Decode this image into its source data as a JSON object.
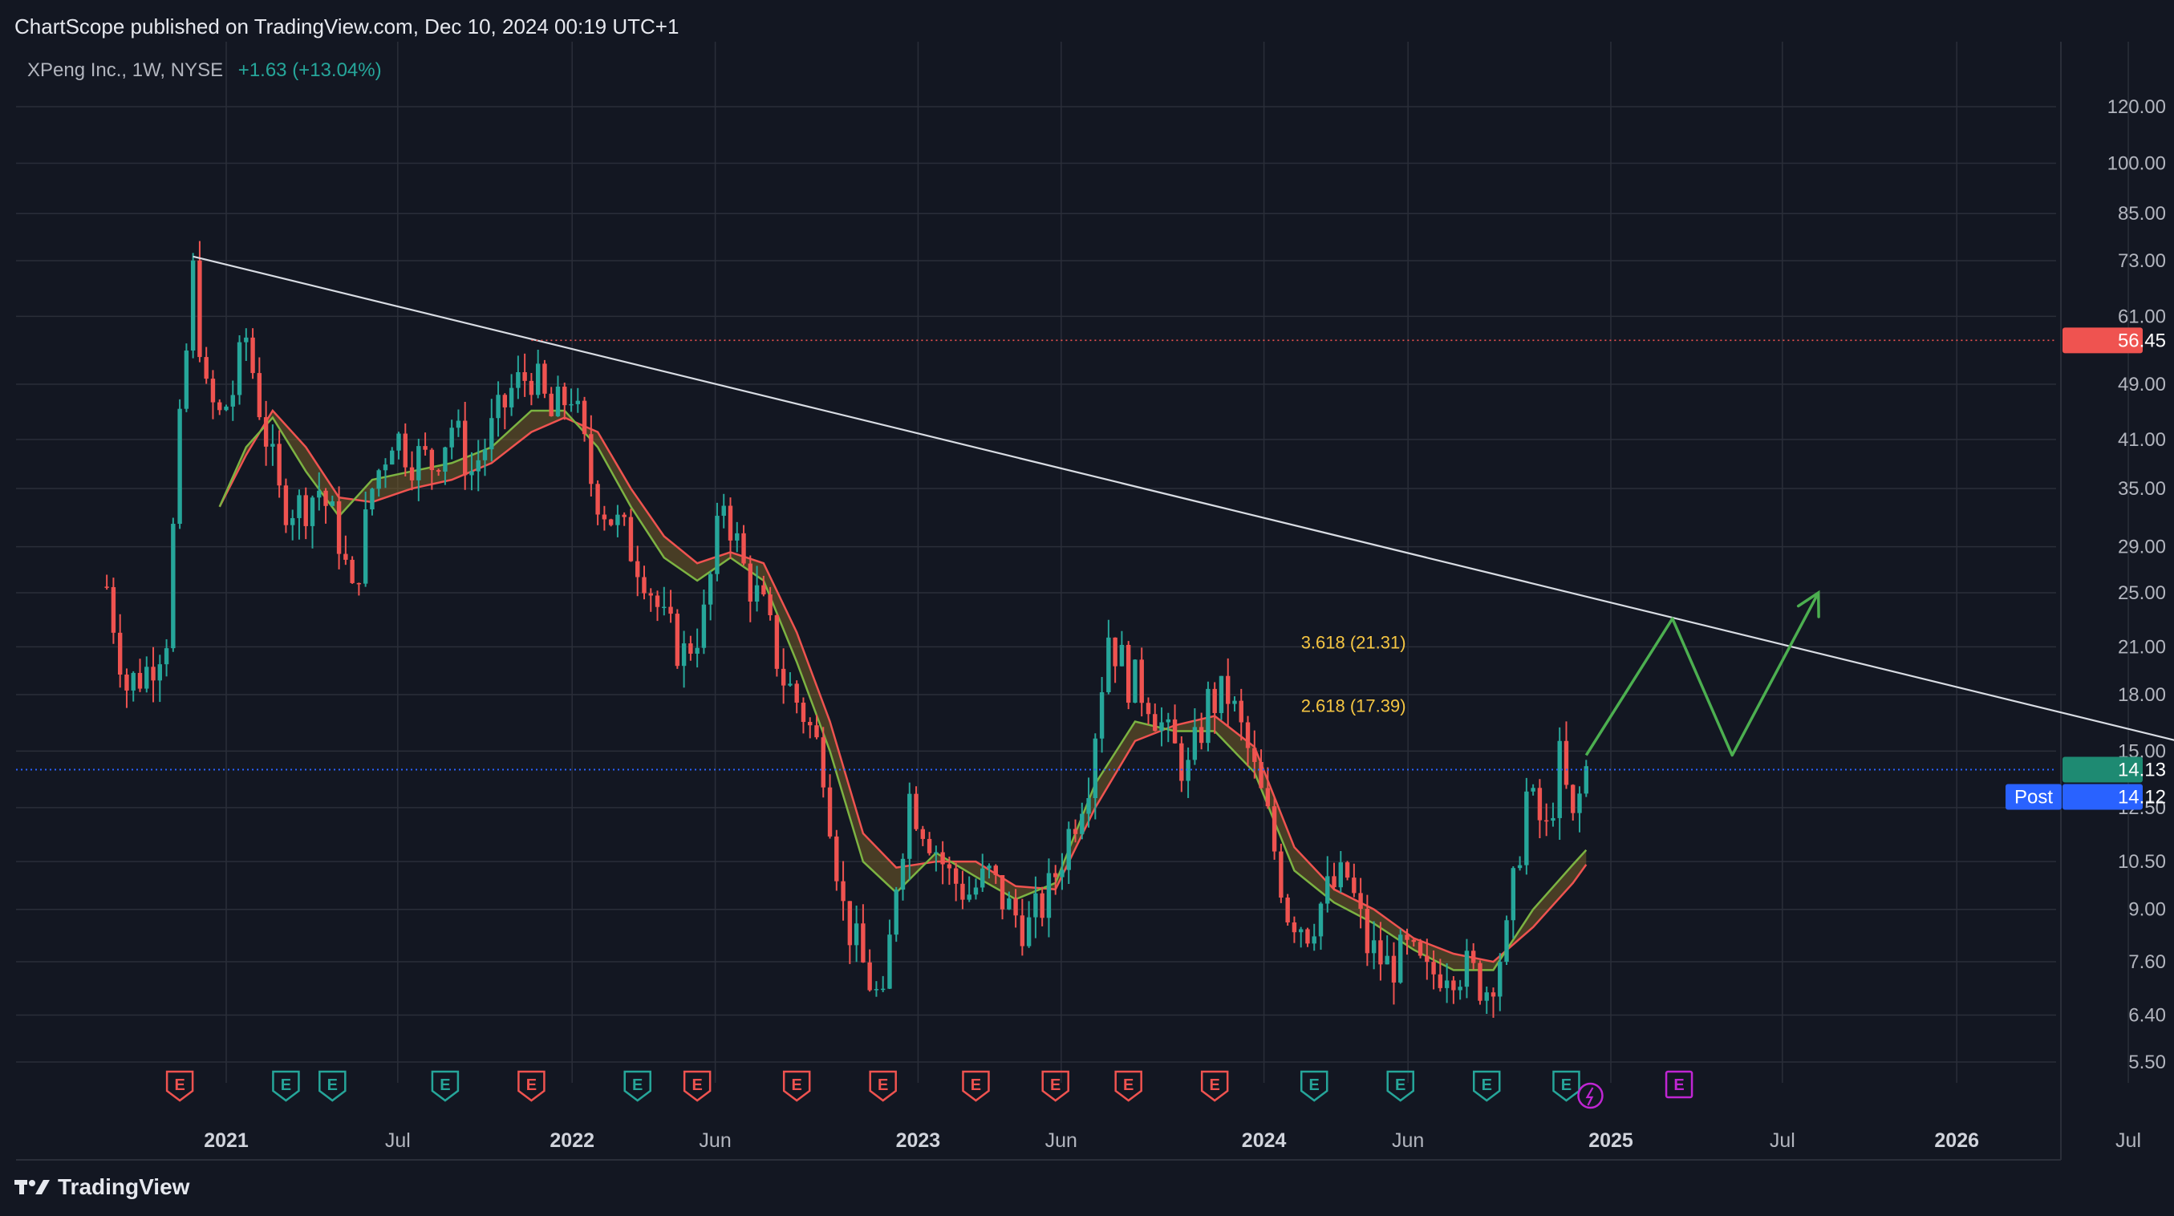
{
  "header": {
    "published": "ChartScope published on TradingView.com, Dec 10, 2024 00:19 UTC+1",
    "symbol": "XPeng Inc., 1W, NYSE",
    "change": "+1.63 (+13.04%)"
  },
  "brand": {
    "name": "TradingView"
  },
  "colors": {
    "background": "#131722",
    "grid": "#2a2e39",
    "up": "#26a69a",
    "down": "#ef5350",
    "trendline": "#d8dce3",
    "projection": "#4caf50",
    "fib_text": "#f5c542",
    "resistance": "#ef5350",
    "price_line": "#2962ff"
  },
  "chart_data": {
    "type": "candlestick",
    "y_scale": "log",
    "ylim": [
      5.0,
      125.0
    ],
    "y_ticks": [
      "120.00",
      "100.00",
      "85.00",
      "73.00",
      "61.00",
      "49.00",
      "41.00",
      "35.00",
      "29.00",
      "25.00",
      "21.00",
      "18.00",
      "15.00",
      "12.50",
      "10.50",
      "9.00",
      "7.60",
      "6.40",
      "5.50"
    ],
    "x_ticks": [
      {
        "label": "2021",
        "date": "2021-01-01",
        "year": true
      },
      {
        "label": "Jul",
        "date": "2021-07-01",
        "year": false
      },
      {
        "label": "2022",
        "date": "2022-01-01",
        "year": true
      },
      {
        "label": "Jun",
        "date": "2022-06-01",
        "year": false
      },
      {
        "label": "2023",
        "date": "2023-01-01",
        "year": true
      },
      {
        "label": "Jun",
        "date": "2023-06-01",
        "year": false
      },
      {
        "label": "2024",
        "date": "2024-01-01",
        "year": true
      },
      {
        "label": "Jun",
        "date": "2024-06-01",
        "year": false
      },
      {
        "label": "2025",
        "date": "2025-01-01",
        "year": true
      },
      {
        "label": "Jul",
        "date": "2025-07-01",
        "year": false
      },
      {
        "label": "2026",
        "date": "2026-01-01",
        "year": true
      },
      {
        "label": "Jul",
        "date": "2026-07-01",
        "year": false
      }
    ],
    "price_path": [
      [
        "2020-08-28",
        25.5
      ],
      [
        "2020-09-18",
        18.5
      ],
      [
        "2020-10-09",
        19.5
      ],
      [
        "2020-10-30",
        22.0
      ],
      [
        "2020-11-13",
        42.0
      ],
      [
        "2020-11-27",
        70.0
      ],
      [
        "2020-12-11",
        47.0
      ],
      [
        "2020-12-25",
        44.0
      ],
      [
        "2021-01-08",
        48.0
      ],
      [
        "2021-01-22",
        57.0
      ],
      [
        "2021-02-05",
        46.0
      ],
      [
        "2021-02-26",
        34.0
      ],
      [
        "2021-03-19",
        33.0
      ],
      [
        "2021-04-09",
        35.0
      ],
      [
        "2021-04-30",
        30.0
      ],
      [
        "2021-05-14",
        24.5
      ],
      [
        "2021-06-04",
        35.0
      ],
      [
        "2021-06-25",
        42.0
      ],
      [
        "2021-07-16",
        39.0
      ],
      [
        "2021-08-06",
        38.0
      ],
      [
        "2021-08-27",
        43.0
      ],
      [
        "2021-09-17",
        37.0
      ],
      [
        "2021-10-08",
        42.0
      ],
      [
        "2021-10-29",
        48.0
      ],
      [
        "2021-11-19",
        51.0
      ],
      [
        "2021-12-10",
        44.0
      ],
      [
        "2021-12-31",
        48.0
      ],
      [
        "2022-01-21",
        36.0
      ],
      [
        "2022-02-04",
        33.0
      ],
      [
        "2022-02-25",
        30.0
      ],
      [
        "2022-03-18",
        27.0
      ],
      [
        "2022-04-08",
        22.5
      ],
      [
        "2022-04-29",
        20.5
      ],
      [
        "2022-05-20",
        23.0
      ],
      [
        "2022-06-10",
        34.0
      ],
      [
        "2022-07-01",
        27.0
      ],
      [
        "2022-07-22",
        23.5
      ],
      [
        "2022-08-12",
        19.0
      ],
      [
        "2022-09-02",
        17.0
      ],
      [
        "2022-09-23",
        14.5
      ],
      [
        "2022-10-14",
        9.0
      ],
      [
        "2022-11-04",
        7.5
      ],
      [
        "2022-11-25",
        6.5
      ],
      [
        "2022-12-09",
        10.0
      ],
      [
        "2022-12-23",
        13.0
      ],
      [
        "2023-01-13",
        11.5
      ],
      [
        "2023-02-03",
        10.0
      ],
      [
        "2023-02-24",
        9.5
      ],
      [
        "2023-03-17",
        10.0
      ],
      [
        "2023-04-07",
        9.0
      ],
      [
        "2023-04-28",
        8.5
      ],
      [
        "2023-05-19",
        9.5
      ],
      [
        "2023-06-09",
        11.5
      ],
      [
        "2023-06-30",
        14.0
      ],
      [
        "2023-07-21",
        22.0
      ],
      [
        "2023-08-11",
        19.0
      ],
      [
        "2023-09-01",
        18.0
      ],
      [
        "2023-09-22",
        15.5
      ],
      [
        "2023-10-13",
        14.0
      ],
      [
        "2023-11-03",
        17.5
      ],
      [
        "2023-11-24",
        18.0
      ],
      [
        "2023-12-15",
        15.0
      ],
      [
        "2024-01-05",
        12.0
      ],
      [
        "2024-01-26",
        9.0
      ],
      [
        "2024-02-16",
        8.5
      ],
      [
        "2024-03-08",
        9.5
      ],
      [
        "2024-03-29",
        10.0
      ],
      [
        "2024-04-19",
        8.0
      ],
      [
        "2024-05-10",
        7.5
      ],
      [
        "2024-05-31",
        7.8
      ],
      [
        "2024-06-21",
        7.2
      ],
      [
        "2024-07-12",
        7.6
      ],
      [
        "2024-08-02",
        7.4
      ],
      [
        "2024-08-23",
        7.0
      ],
      [
        "2024-09-13",
        8.2
      ],
      [
        "2024-10-04",
        13.0
      ],
      [
        "2024-10-25",
        11.5
      ],
      [
        "2024-11-08",
        14.5
      ],
      [
        "2024-11-22",
        11.8
      ],
      [
        "2024-12-06",
        14.13
      ]
    ],
    "ma_fast": [
      [
        "2020-12-25",
        33.0
      ],
      [
        "2021-01-22",
        40.0
      ],
      [
        "2021-02-19",
        44.0
      ],
      [
        "2021-03-26",
        37.0
      ],
      [
        "2021-04-30",
        32.0
      ],
      [
        "2021-06-04",
        36.0
      ],
      [
        "2021-07-16",
        37.0
      ],
      [
        "2021-08-27",
        38.0
      ],
      [
        "2021-10-08",
        40.0
      ],
      [
        "2021-11-19",
        45.0
      ],
      [
        "2021-12-24",
        45.0
      ],
      [
        "2022-01-28",
        40.0
      ],
      [
        "2022-03-04",
        33.0
      ],
      [
        "2022-04-08",
        28.0
      ],
      [
        "2022-05-13",
        26.0
      ],
      [
        "2022-06-17",
        28.0
      ],
      [
        "2022-07-22",
        26.0
      ],
      [
        "2022-08-26",
        20.0
      ],
      [
        "2022-09-30",
        15.0
      ],
      [
        "2022-11-04",
        10.5
      ],
      [
        "2022-12-09",
        9.5
      ],
      [
        "2023-01-20",
        10.8
      ],
      [
        "2023-03-03",
        10.0
      ],
      [
        "2023-04-14",
        9.3
      ],
      [
        "2023-05-26",
        9.8
      ],
      [
        "2023-07-07",
        13.5
      ],
      [
        "2023-08-18",
        16.5
      ],
      [
        "2023-09-29",
        16.0
      ],
      [
        "2023-11-10",
        16.0
      ],
      [
        "2023-12-22",
        14.0
      ],
      [
        "2024-02-02",
        10.2
      ],
      [
        "2024-03-15",
        9.2
      ],
      [
        "2024-04-26",
        8.6
      ],
      [
        "2024-06-07",
        7.9
      ],
      [
        "2024-07-19",
        7.4
      ],
      [
        "2024-08-30",
        7.4
      ],
      [
        "2024-10-11",
        9.0
      ],
      [
        "2024-11-22",
        10.4
      ],
      [
        "2024-12-06",
        10.9
      ]
    ],
    "ma_slow": [
      [
        "2020-12-25",
        33.0
      ],
      [
        "2021-01-22",
        39.0
      ],
      [
        "2021-02-19",
        45.0
      ],
      [
        "2021-03-26",
        40.0
      ],
      [
        "2021-04-30",
        34.0
      ],
      [
        "2021-06-04",
        33.5
      ],
      [
        "2021-07-16",
        35.0
      ],
      [
        "2021-08-27",
        36.0
      ],
      [
        "2021-10-08",
        38.0
      ],
      [
        "2021-11-19",
        42.0
      ],
      [
        "2021-12-24",
        44.0
      ],
      [
        "2022-01-28",
        42.0
      ],
      [
        "2022-03-04",
        35.0
      ],
      [
        "2022-04-08",
        30.0
      ],
      [
        "2022-05-13",
        27.5
      ],
      [
        "2022-06-17",
        28.5
      ],
      [
        "2022-07-22",
        27.5
      ],
      [
        "2022-08-26",
        22.0
      ],
      [
        "2022-09-30",
        16.5
      ],
      [
        "2022-11-04",
        11.5
      ],
      [
        "2022-12-09",
        10.3
      ],
      [
        "2023-01-20",
        10.5
      ],
      [
        "2023-03-03",
        10.5
      ],
      [
        "2023-04-14",
        9.7
      ],
      [
        "2023-05-26",
        9.6
      ],
      [
        "2023-07-07",
        12.5
      ],
      [
        "2023-08-18",
        15.5
      ],
      [
        "2023-09-29",
        16.3
      ],
      [
        "2023-11-10",
        16.8
      ],
      [
        "2023-12-22",
        15.2
      ],
      [
        "2024-02-02",
        11.0
      ],
      [
        "2024-03-15",
        9.6
      ],
      [
        "2024-04-26",
        9.0
      ],
      [
        "2024-06-07",
        8.2
      ],
      [
        "2024-07-19",
        7.8
      ],
      [
        "2024-08-30",
        7.6
      ],
      [
        "2024-10-11",
        8.5
      ],
      [
        "2024-11-22",
        9.8
      ],
      [
        "2024-12-06",
        10.4
      ]
    ],
    "trendline": {
      "start": [
        "2020-11-27",
        74.0
      ],
      "end": [
        "2026-10-23",
        14.8
      ]
    },
    "resistance": {
      "price": 56.45,
      "label": "56.45",
      "start": "2021-11-19"
    },
    "last_price": {
      "price": 14.13,
      "label": "14.13"
    },
    "post_price": {
      "price": 14.12,
      "label": "14.12",
      "tag": "Post"
    },
    "fib_levels": [
      {
        "label": "3.618 (21.31)",
        "price": 21.31,
        "date": "2024-02-09"
      },
      {
        "label": "2.618 (17.39)",
        "price": 17.39,
        "date": "2024-02-09"
      }
    ],
    "projection": [
      [
        "2024-12-06",
        14.8
      ],
      [
        "2025-03-07",
        23.0
      ],
      [
        "2025-05-09",
        14.8
      ],
      [
        "2025-08-08",
        25.0
      ]
    ],
    "events": [
      {
        "date": "2020-11-13",
        "type": "E",
        "kind": "down"
      },
      {
        "date": "2021-03-05",
        "type": "E",
        "kind": "up"
      },
      {
        "date": "2021-04-23",
        "type": "E",
        "kind": "up"
      },
      {
        "date": "2021-08-20",
        "type": "E",
        "kind": "up"
      },
      {
        "date": "2021-11-19",
        "type": "E",
        "kind": "down"
      },
      {
        "date": "2022-03-11",
        "type": "E",
        "kind": "up"
      },
      {
        "date": "2022-05-13",
        "type": "E",
        "kind": "down"
      },
      {
        "date": "2022-08-26",
        "type": "E",
        "kind": "down"
      },
      {
        "date": "2022-11-25",
        "type": "E",
        "kind": "down"
      },
      {
        "date": "2023-03-03",
        "type": "E",
        "kind": "down"
      },
      {
        "date": "2023-05-26",
        "type": "E",
        "kind": "down"
      },
      {
        "date": "2023-08-11",
        "type": "E",
        "kind": "down"
      },
      {
        "date": "2023-11-10",
        "type": "E",
        "kind": "down"
      },
      {
        "date": "2024-02-23",
        "type": "E",
        "kind": "up"
      },
      {
        "date": "2024-05-24",
        "type": "E",
        "kind": "up"
      },
      {
        "date": "2024-08-23",
        "type": "E",
        "kind": "up"
      },
      {
        "date": "2024-11-15",
        "type": "E",
        "kind": "up"
      },
      {
        "date": "2025-03-14",
        "type": "E",
        "kind": "future"
      }
    ]
  }
}
